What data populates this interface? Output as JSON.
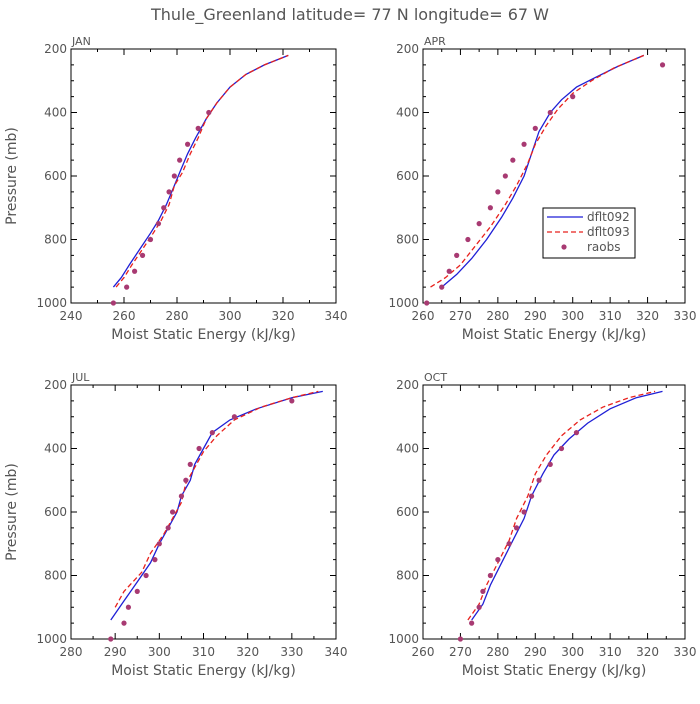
{
  "figure": {
    "title": "Thule_Greenland  latitude= 77 N longitude= 67 W"
  },
  "colors": {
    "frame": "#000000",
    "text": "#555555",
    "dflt092": "#1f1fd6",
    "dflt093": "#e8211c",
    "raobs": "#a83a72"
  },
  "chart_data": [
    {
      "type": "line",
      "panel": "JAN",
      "title": "JAN",
      "xlabel": "Moist Static Energy (kJ/kg)",
      "ylabel": "Pressure (mb)",
      "xlim": [
        240,
        340
      ],
      "ylim": [
        1000,
        200
      ],
      "x_ticks": [
        240,
        260,
        280,
        300,
        320,
        340
      ],
      "y_ticks": [
        200,
        400,
        600,
        800,
        1000
      ],
      "y_inverted": true,
      "legend": null,
      "series": [
        {
          "name": "dflt092",
          "style": "solid",
          "points": [
            [
              256,
              950
            ],
            [
              259,
              920
            ],
            [
              262,
              880
            ],
            [
              266,
              830
            ],
            [
              270,
              780
            ],
            [
              273,
              740
            ],
            [
              276,
              690
            ],
            [
              279,
              630
            ],
            [
              281,
              590
            ],
            [
              284,
              530
            ],
            [
              287,
              480
            ],
            [
              291,
              420
            ],
            [
              295,
              370
            ],
            [
              300,
              320
            ],
            [
              306,
              280
            ],
            [
              313,
              250
            ],
            [
              322,
              220
            ]
          ]
        },
        {
          "name": "dflt093",
          "style": "dashed",
          "points": [
            [
              257,
              950
            ],
            [
              260,
              920
            ],
            [
              263,
              880
            ],
            [
              267,
              830
            ],
            [
              271,
              780
            ],
            [
              274,
              740
            ],
            [
              277,
              690
            ],
            [
              279,
              630
            ],
            [
              282,
              590
            ],
            [
              285,
              530
            ],
            [
              288,
              480
            ],
            [
              291,
              420
            ],
            [
              295,
              370
            ],
            [
              300,
              320
            ],
            [
              306,
              280
            ],
            [
              313,
              250
            ],
            [
              322,
              220
            ]
          ]
        },
        {
          "name": "raobs",
          "style": "points",
          "points": [
            [
              256,
              1000
            ],
            [
              261,
              950
            ],
            [
              264,
              900
            ],
            [
              267,
              850
            ],
            [
              270,
              800
            ],
            [
              273,
              750
            ],
            [
              275,
              700
            ],
            [
              277,
              650
            ],
            [
              279,
              600
            ],
            [
              281,
              550
            ],
            [
              284,
              500
            ],
            [
              288,
              450
            ],
            [
              292,
              400
            ]
          ]
        }
      ]
    },
    {
      "type": "line",
      "panel": "APR",
      "title": "APR",
      "xlabel": "Moist Static Energy (kJ/kg)",
      "ylabel": "",
      "xlim": [
        260,
        330
      ],
      "ylim": [
        1000,
        200
      ],
      "x_ticks": [
        260,
        270,
        280,
        290,
        300,
        310,
        320,
        330
      ],
      "y_ticks": [
        200,
        400,
        600,
        800,
        1000
      ],
      "y_inverted": true,
      "legend": "right-middle",
      "series": [
        {
          "name": "dflt092",
          "style": "solid",
          "points": [
            [
              265,
              950
            ],
            [
              269,
              910
            ],
            [
              273,
              860
            ],
            [
              277,
              800
            ],
            [
              281,
              730
            ],
            [
              284,
              670
            ],
            [
              287,
              600
            ],
            [
              289,
              530
            ],
            [
              291,
              460
            ],
            [
              294,
              400
            ],
            [
              297,
              360
            ],
            [
              301,
              320
            ],
            [
              306,
              290
            ],
            [
              312,
              255
            ],
            [
              319,
              220
            ]
          ]
        },
        {
          "name": "dflt093",
          "style": "dashed",
          "points": [
            [
              262,
              950
            ],
            [
              266,
              920
            ],
            [
              270,
              880
            ],
            [
              274,
              820
            ],
            [
              278,
              760
            ],
            [
              282,
              690
            ],
            [
              285,
              630
            ],
            [
              288,
              560
            ],
            [
              290,
              500
            ],
            [
              293,
              440
            ],
            [
              296,
              390
            ],
            [
              300,
              340
            ],
            [
              305,
              300
            ],
            [
              311,
              260
            ],
            [
              319,
              220
            ]
          ]
        },
        {
          "name": "raobs",
          "style": "points",
          "points": [
            [
              261,
              1000
            ],
            [
              265,
              950
            ],
            [
              267,
              900
            ],
            [
              269,
              850
            ],
            [
              272,
              800
            ],
            [
              275,
              750
            ],
            [
              278,
              700
            ],
            [
              280,
              650
            ],
            [
              282,
              600
            ],
            [
              284,
              550
            ],
            [
              287,
              500
            ],
            [
              290,
              450
            ],
            [
              294,
              400
            ],
            [
              300,
              350
            ],
            [
              324,
              250
            ]
          ]
        }
      ]
    },
    {
      "type": "line",
      "panel": "JUL",
      "title": "JUL",
      "xlabel": "Moist Static Energy (kJ/kg)",
      "ylabel": "Pressure (mb)",
      "xlim": [
        280,
        340
      ],
      "ylim": [
        1000,
        200
      ],
      "x_ticks": [
        280,
        290,
        300,
        310,
        320,
        330,
        340
      ],
      "y_ticks": [
        200,
        400,
        600,
        800,
        1000
      ],
      "y_inverted": true,
      "legend": null,
      "series": [
        {
          "name": "dflt092",
          "style": "solid",
          "points": [
            [
              289,
              940
            ],
            [
              292,
              880
            ],
            [
              295,
              820
            ],
            [
              298,
              760
            ],
            [
              300,
              700
            ],
            [
              302,
              650
            ],
            [
              304,
              600
            ],
            [
              305,
              550
            ],
            [
              307,
              500
            ],
            [
              308,
              450
            ],
            [
              310,
              400
            ],
            [
              312,
              350
            ],
            [
              316,
              310
            ],
            [
              322,
              275
            ],
            [
              330,
              240
            ],
            [
              337,
              220
            ]
          ]
        },
        {
          "name": "dflt093",
          "style": "dashed",
          "points": [
            [
              290,
              900
            ],
            [
              292,
              850
            ],
            [
              296,
              790
            ],
            [
              298,
              730
            ],
            [
              301,
              670
            ],
            [
              303,
              620
            ],
            [
              305,
              570
            ],
            [
              306,
              510
            ],
            [
              308,
              460
            ],
            [
              310,
              410
            ],
            [
              313,
              360
            ],
            [
              317,
              310
            ],
            [
              323,
              270
            ],
            [
              330,
              240
            ],
            [
              336,
              220
            ]
          ]
        },
        {
          "name": "raobs",
          "style": "points",
          "points": [
            [
              289,
              1000
            ],
            [
              292,
              950
            ],
            [
              293,
              900
            ],
            [
              295,
              850
            ],
            [
              297,
              800
            ],
            [
              299,
              750
            ],
            [
              300,
              700
            ],
            [
              302,
              650
            ],
            [
              303,
              600
            ],
            [
              305,
              550
            ],
            [
              306,
              500
            ],
            [
              307,
              450
            ],
            [
              309,
              400
            ],
            [
              312,
              350
            ],
            [
              317,
              300
            ],
            [
              330,
              250
            ]
          ]
        }
      ]
    },
    {
      "type": "line",
      "panel": "OCT",
      "title": "OCT",
      "xlabel": "Moist Static Energy (kJ/kg)",
      "ylabel": "",
      "xlim": [
        260,
        330
      ],
      "ylim": [
        1000,
        200
      ],
      "x_ticks": [
        260,
        270,
        280,
        290,
        300,
        310,
        320,
        330
      ],
      "y_ticks": [
        200,
        400,
        600,
        800,
        1000
      ],
      "y_inverted": true,
      "legend": null,
      "series": [
        {
          "name": "dflt092",
          "style": "solid",
          "points": [
            [
              273,
              940
            ],
            [
              276,
              890
            ],
            [
              278,
              830
            ],
            [
              281,
              760
            ],
            [
              284,
              690
            ],
            [
              287,
              620
            ],
            [
              289,
              550
            ],
            [
              292,
              480
            ],
            [
              295,
              420
            ],
            [
              299,
              370
            ],
            [
              304,
              320
            ],
            [
              310,
              275
            ],
            [
              317,
              240
            ],
            [
              324,
              220
            ]
          ]
        },
        {
          "name": "dflt093",
          "style": "dashed",
          "points": [
            [
              272,
              940
            ],
            [
              275,
              890
            ],
            [
              277,
              830
            ],
            [
              280,
              760
            ],
            [
              283,
              690
            ],
            [
              285,
              620
            ],
            [
              288,
              550
            ],
            [
              290,
              480
            ],
            [
              293,
              420
            ],
            [
              297,
              360
            ],
            [
              302,
              310
            ],
            [
              308,
              270
            ],
            [
              315,
              240
            ],
            [
              322,
              220
            ]
          ]
        },
        {
          "name": "raobs",
          "style": "points",
          "points": [
            [
              270,
              1000
            ],
            [
              273,
              950
            ],
            [
              275,
              900
            ],
            [
              276,
              850
            ],
            [
              278,
              800
            ],
            [
              280,
              750
            ],
            [
              283,
              700
            ],
            [
              285,
              650
            ],
            [
              287,
              600
            ],
            [
              289,
              550
            ],
            [
              291,
              500
            ],
            [
              294,
              450
            ],
            [
              297,
              400
            ],
            [
              301,
              350
            ]
          ]
        }
      ]
    }
  ]
}
